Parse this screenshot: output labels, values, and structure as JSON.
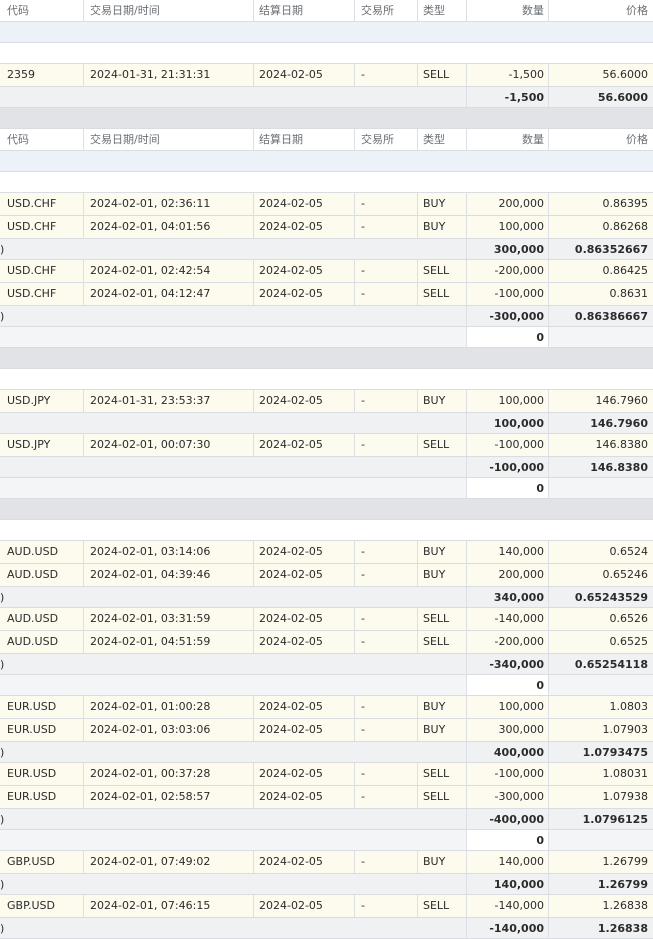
{
  "columns": {
    "code": "代码",
    "datetime": "交易日期/时间",
    "settle": "结算日期",
    "exchange": "交易所",
    "type": "类型",
    "qty": "数量",
    "price": "价格"
  },
  "rows": [
    {
      "kind": "header",
      "h": 22
    },
    {
      "kind": "blank-blue",
      "h": 21
    },
    {
      "kind": "blank-white",
      "h": 21
    },
    {
      "kind": "trade",
      "h": 23,
      "code": "2359",
      "datetime": "2024-01-31, 21:31:31",
      "settle": "2024-02-05",
      "exchange": "-",
      "type": "SELL",
      "qty": "-1,500",
      "price": "56.6000"
    },
    {
      "kind": "subtotal",
      "h": 21,
      "qty": "-1,500",
      "price": "56.6000"
    },
    {
      "kind": "sep",
      "h": 21
    },
    {
      "kind": "header",
      "h": 22
    },
    {
      "kind": "blank-blue",
      "h": 21
    },
    {
      "kind": "blank-white",
      "h": 21
    },
    {
      "kind": "trade",
      "h": 23,
      "code": "USD.CHF",
      "datetime": "2024-02-01, 02:36:11",
      "settle": "2024-02-05",
      "exchange": "-",
      "type": "BUY",
      "qty": "200,000",
      "price": "0.86395"
    },
    {
      "kind": "trade",
      "h": 23,
      "code": "USD.CHF",
      "datetime": "2024-02-01, 04:01:56",
      "settle": "2024-02-05",
      "exchange": "-",
      "type": "BUY",
      "qty": "100,000",
      "price": "0.86268"
    },
    {
      "kind": "subtotal",
      "h": 21,
      "lead": ")",
      "qty": "300,000",
      "price": "0.86352667"
    },
    {
      "kind": "trade",
      "h": 23,
      "code": "USD.CHF",
      "datetime": "2024-02-01, 02:42:54",
      "settle": "2024-02-05",
      "exchange": "-",
      "type": "SELL",
      "qty": "-200,000",
      "price": "0.86425"
    },
    {
      "kind": "trade",
      "h": 23,
      "code": "USD.CHF",
      "datetime": "2024-02-01, 04:12:47",
      "settle": "2024-02-05",
      "exchange": "-",
      "type": "SELL",
      "qty": "-100,000",
      "price": "0.8631"
    },
    {
      "kind": "subtotal",
      "h": 21,
      "lead": ")",
      "qty": "-300,000",
      "price": "0.86386667"
    },
    {
      "kind": "net",
      "h": 21,
      "qty": "0"
    },
    {
      "kind": "sep",
      "h": 21
    },
    {
      "kind": "blank-white",
      "h": 21
    },
    {
      "kind": "trade",
      "h": 23,
      "code": "USD.JPY",
      "datetime": "2024-01-31, 23:53:37",
      "settle": "2024-02-05",
      "exchange": "-",
      "type": "BUY",
      "qty": "100,000",
      "price": "146.7960"
    },
    {
      "kind": "subtotal",
      "h": 21,
      "qty": "100,000",
      "price": "146.7960"
    },
    {
      "kind": "trade",
      "h": 23,
      "code": "USD.JPY",
      "datetime": "2024-02-01, 00:07:30",
      "settle": "2024-02-05",
      "exchange": "-",
      "type": "SELL",
      "qty": "-100,000",
      "price": "146.8380"
    },
    {
      "kind": "subtotal",
      "h": 21,
      "qty": "-100,000",
      "price": "146.8380"
    },
    {
      "kind": "net",
      "h": 21,
      "qty": "0"
    },
    {
      "kind": "sep",
      "h": 21
    },
    {
      "kind": "blank-white",
      "h": 21
    },
    {
      "kind": "trade",
      "h": 23,
      "code": "AUD.USD",
      "datetime": "2024-02-01, 03:14:06",
      "settle": "2024-02-05",
      "exchange": "-",
      "type": "BUY",
      "qty": "140,000",
      "price": "0.6524"
    },
    {
      "kind": "trade",
      "h": 23,
      "code": "AUD.USD",
      "datetime": "2024-02-01, 04:39:46",
      "settle": "2024-02-05",
      "exchange": "-",
      "type": "BUY",
      "qty": "200,000",
      "price": "0.65246"
    },
    {
      "kind": "subtotal",
      "h": 21,
      "lead": ")",
      "qty": "340,000",
      "price": "0.65243529"
    },
    {
      "kind": "trade",
      "h": 23,
      "code": "AUD.USD",
      "datetime": "2024-02-01, 03:31:59",
      "settle": "2024-02-05",
      "exchange": "-",
      "type": "SELL",
      "qty": "-140,000",
      "price": "0.6526"
    },
    {
      "kind": "trade",
      "h": 23,
      "code": "AUD.USD",
      "datetime": "2024-02-01, 04:51:59",
      "settle": "2024-02-05",
      "exchange": "-",
      "type": "SELL",
      "qty": "-200,000",
      "price": "0.6525"
    },
    {
      "kind": "subtotal",
      "h": 21,
      "lead": ")",
      "qty": "-340,000",
      "price": "0.65254118"
    },
    {
      "kind": "net",
      "h": 21,
      "qty": "0"
    },
    {
      "kind": "trade",
      "h": 23,
      "code": "EUR.USD",
      "datetime": "2024-02-01, 01:00:28",
      "settle": "2024-02-05",
      "exchange": "-",
      "type": "BUY",
      "qty": "100,000",
      "price": "1.0803"
    },
    {
      "kind": "trade",
      "h": 23,
      "code": "EUR.USD",
      "datetime": "2024-02-01, 03:03:06",
      "settle": "2024-02-05",
      "exchange": "-",
      "type": "BUY",
      "qty": "300,000",
      "price": "1.07903"
    },
    {
      "kind": "subtotal",
      "h": 21,
      "lead": ")",
      "qty": "400,000",
      "price": "1.0793475"
    },
    {
      "kind": "trade",
      "h": 23,
      "code": "EUR.USD",
      "datetime": "2024-02-01, 00:37:28",
      "settle": "2024-02-05",
      "exchange": "-",
      "type": "SELL",
      "qty": "-100,000",
      "price": "1.08031"
    },
    {
      "kind": "trade",
      "h": 23,
      "code": "EUR.USD",
      "datetime": "2024-02-01, 02:58:57",
      "settle": "2024-02-05",
      "exchange": "-",
      "type": "SELL",
      "qty": "-300,000",
      "price": "1.07938"
    },
    {
      "kind": "subtotal",
      "h": 21,
      "lead": ")",
      "qty": "-400,000",
      "price": "1.0796125"
    },
    {
      "kind": "net",
      "h": 21,
      "qty": "0"
    },
    {
      "kind": "trade",
      "h": 23,
      "code": "GBP.USD",
      "datetime": "2024-02-01, 07:49:02",
      "settle": "2024-02-05",
      "exchange": "-",
      "type": "BUY",
      "qty": "140,000",
      "price": "1.26799"
    },
    {
      "kind": "subtotal",
      "h": 21,
      "lead": ")",
      "qty": "140,000",
      "price": "1.26799"
    },
    {
      "kind": "trade",
      "h": 23,
      "code": "GBP.USD",
      "datetime": "2024-02-01, 07:46:15",
      "settle": "2024-02-05",
      "exchange": "-",
      "type": "SELL",
      "qty": "-140,000",
      "price": "1.26838"
    },
    {
      "kind": "subtotal",
      "h": 21,
      "lead": ")",
      "qty": "-140,000",
      "price": "1.26838"
    }
  ]
}
